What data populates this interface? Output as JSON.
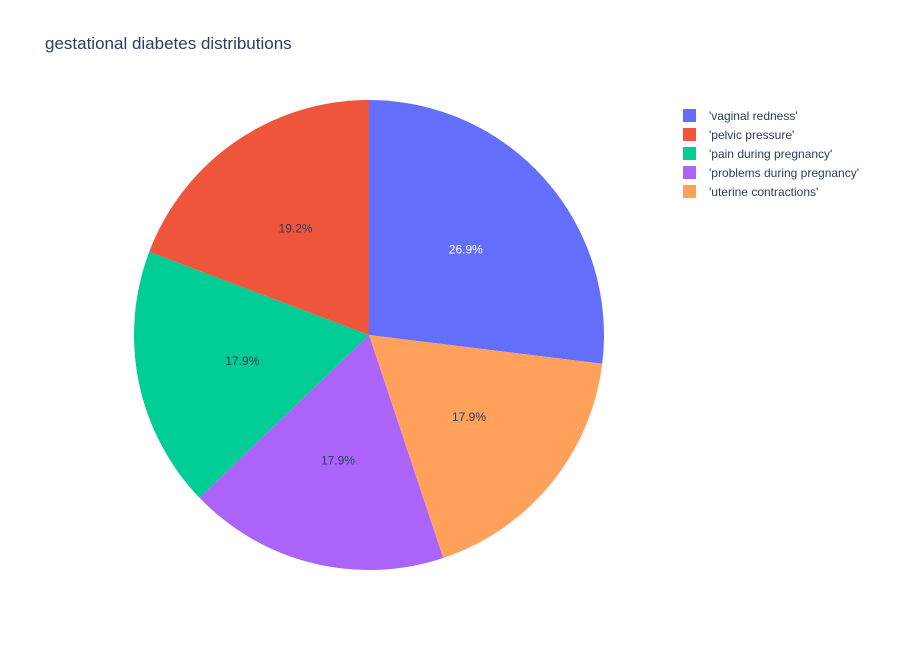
{
  "chart_data": {
    "type": "pie",
    "title": "gestational diabetes distributions",
    "legend_position": "top-right",
    "slices": [
      {
        "label": "'vaginal redness'",
        "value": 26.9,
        "text": "26.9%",
        "color": "#636efa",
        "text_color": "#ffffff"
      },
      {
        "label": "'uterine contractions'",
        "value": 17.9,
        "text": "17.9%",
        "color": "#ffa15a",
        "text_color": "#2a3f5f"
      },
      {
        "label": "'problems during pregnancy'",
        "value": 17.9,
        "text": "17.9%",
        "color": "#ab63fa",
        "text_color": "#2a3f5f"
      },
      {
        "label": "'pain during pregnancy'",
        "value": 17.9,
        "text": "17.9%",
        "color": "#00cc96",
        "text_color": "#2a3f5f"
      },
      {
        "label": "'pelvic pressure'",
        "value": 19.2,
        "text": "19.2%",
        "color": "#ef553b",
        "text_color": "#2a3f5f"
      }
    ],
    "legend_order": [
      "'vaginal redness'",
      "'pelvic pressure'",
      "'pain during pregnancy'",
      "'problems during pregnancy'",
      "'uterine contractions'"
    ]
  }
}
